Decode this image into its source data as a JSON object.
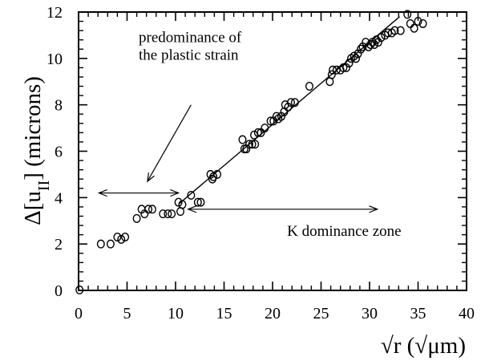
{
  "chart_data": {
    "type": "scatter",
    "xlabel": "√r  (√μm)",
    "ylabel": "Δ[u_II] (microns)",
    "xlim": [
      0,
      40
    ],
    "ylim": [
      0,
      12
    ],
    "xticks": [
      0,
      5,
      10,
      15,
      20,
      25,
      30,
      35,
      40
    ],
    "yticks": [
      0,
      2,
      4,
      6,
      8,
      10,
      12
    ],
    "grid": false,
    "annotations": [
      {
        "text": "predominance of",
        "x": 6.2,
        "y": 10.7
      },
      {
        "text": "the plastic strain",
        "x": 6.2,
        "y": 9.95
      },
      {
        "text": "K dominance zone",
        "x": 21.5,
        "y": 2.35
      }
    ],
    "arrows": [
      {
        "type": "double",
        "x1": 2.1,
        "y1": 4.2,
        "x2": 10.3,
        "y2": 4.2
      },
      {
        "type": "double",
        "x1": 11.3,
        "y1": 3.5,
        "x2": 30.8,
        "y2": 3.5
      },
      {
        "type": "single",
        "x1": 11.6,
        "y1": 8.0,
        "x2": 7.1,
        "y2": 4.7
      }
    ],
    "series": [
      {
        "name": "",
        "marker": "open-circle",
        "color": "#000000",
        "points": [
          [
            0.1,
            0.02
          ],
          [
            2.3,
            2.0
          ],
          [
            3.3,
            2.0
          ],
          [
            4.0,
            2.3
          ],
          [
            4.8,
            2.3
          ],
          [
            4.4,
            2.2
          ],
          [
            6.0,
            3.1
          ],
          [
            6.5,
            3.5
          ],
          [
            6.8,
            3.3
          ],
          [
            7.2,
            3.5
          ],
          [
            7.6,
            3.5
          ],
          [
            8.7,
            3.3
          ],
          [
            9.2,
            3.3
          ],
          [
            9.6,
            3.3
          ],
          [
            10.3,
            3.8
          ],
          [
            10.7,
            3.7
          ],
          [
            10.5,
            3.4
          ],
          [
            11.6,
            4.1
          ],
          [
            12.3,
            3.8
          ],
          [
            12.6,
            3.8
          ],
          [
            13.6,
            5.0
          ],
          [
            13.9,
            4.9
          ],
          [
            14.3,
            5.0
          ],
          [
            13.8,
            4.8
          ],
          [
            16.9,
            6.5
          ],
          [
            17.1,
            6.1
          ],
          [
            17.3,
            6.1
          ],
          [
            17.6,
            6.3
          ],
          [
            17.9,
            6.3
          ],
          [
            18.2,
            6.3
          ],
          [
            18.1,
            6.7
          ],
          [
            18.5,
            6.8
          ],
          [
            18.8,
            6.8
          ],
          [
            19.2,
            7.0
          ],
          [
            19.8,
            7.3
          ],
          [
            20.1,
            7.3
          ],
          [
            20.4,
            7.5
          ],
          [
            20.6,
            7.4
          ],
          [
            20.9,
            7.5
          ],
          [
            21.2,
            7.7
          ],
          [
            21.3,
            8.0
          ],
          [
            21.6,
            7.9
          ],
          [
            21.9,
            8.1
          ],
          [
            22.3,
            8.1
          ],
          [
            23.8,
            8.8
          ],
          [
            25.9,
            9.0
          ],
          [
            26.1,
            9.3
          ],
          [
            26.2,
            9.5
          ],
          [
            26.6,
            9.5
          ],
          [
            27.0,
            9.5
          ],
          [
            27.3,
            9.6
          ],
          [
            27.6,
            9.6
          ],
          [
            27.9,
            9.8
          ],
          [
            28.1,
            10.0
          ],
          [
            28.4,
            10.1
          ],
          [
            28.6,
            10.0
          ],
          [
            28.8,
            10.2
          ],
          [
            29.1,
            10.4
          ],
          [
            29.3,
            10.5
          ],
          [
            29.6,
            10.7
          ],
          [
            29.9,
            10.5
          ],
          [
            30.1,
            10.6
          ],
          [
            30.3,
            10.7
          ],
          [
            30.5,
            10.6
          ],
          [
            30.7,
            10.8
          ],
          [
            30.9,
            10.7
          ],
          [
            31.2,
            10.9
          ],
          [
            31.6,
            11.0
          ],
          [
            31.9,
            11.1
          ],
          [
            32.3,
            11.1
          ],
          [
            32.6,
            11.2
          ],
          [
            33.2,
            11.2
          ],
          [
            33.9,
            11.9
          ],
          [
            34.2,
            11.5
          ],
          [
            34.6,
            11.3
          ],
          [
            35.0,
            11.6
          ],
          [
            35.5,
            11.5
          ]
        ]
      },
      {
        "name": "",
        "type": "line",
        "color": "#000000",
        "points": [
          [
            10.4,
            3.75
          ],
          [
            33.1,
            11.8
          ]
        ]
      }
    ]
  }
}
